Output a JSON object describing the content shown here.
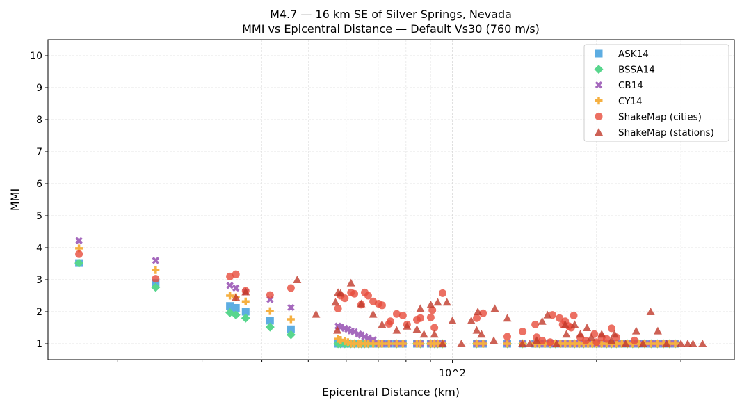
{
  "chart_data": {
    "type": "scatter",
    "title": "M4.7 — 16 km SE of Silver Springs, Nevada",
    "subtitle": "MMI vs Epicentral Distance — Default Vs30 (760 m/s)",
    "xlabel": "Epicentral Distance (km)",
    "ylabel": "MMI",
    "xscale": "log",
    "xlim": [
      14.3,
      388
    ],
    "ylim": [
      0.5,
      10.5
    ],
    "xticks": [
      {
        "value": 100,
        "label": "10^2"
      }
    ],
    "yticks": [
      1,
      2,
      3,
      4,
      5,
      6,
      7,
      8,
      9,
      10
    ],
    "grid": true,
    "legend_position": "top-right",
    "series": [
      {
        "name": "ASK14",
        "marker": "square",
        "color": "#5DADE2",
        "x": [
          16.6,
          24.0,
          34.3,
          35.3,
          37.0,
          41.6,
          46.0,
          57.7,
          58.4,
          59.6,
          60.5,
          61.4,
          62.4,
          63.7,
          64.5,
          65.6,
          66.7,
          68.3,
          70.1,
          71.3,
          73.7,
          76.5,
          78.8,
          84.3,
          85.7,
          90.1,
          91.7,
          93.2,
          95.4,
          112.4,
          115.9,
          130.2,
          140.2,
          148.9,
          152,
          156,
          160,
          164,
          168,
          172,
          176,
          180,
          184,
          188,
          192,
          196,
          200,
          205,
          210,
          215,
          220,
          226,
          232,
          238,
          245,
          252,
          260,
          268,
          276,
          284,
          292
        ],
        "y": [
          3.52,
          2.9,
          2.18,
          2.12,
          2.0,
          1.72,
          1.45,
          1,
          1,
          1,
          1,
          1,
          1,
          1,
          1,
          1,
          1,
          1,
          1,
          1,
          1,
          1,
          1,
          1,
          1,
          1,
          1,
          1,
          1,
          1,
          1,
          1,
          1,
          1,
          1,
          1,
          1,
          1,
          1,
          1,
          1,
          1,
          1,
          1,
          1,
          1,
          1,
          1,
          1,
          1,
          1,
          1,
          1,
          1,
          1,
          1,
          1,
          1,
          1,
          1,
          1
        ]
      },
      {
        "name": "BSSA14",
        "marker": "diamond",
        "color": "#58D68D",
        "x": [
          16.6,
          24.0,
          34.3,
          35.3,
          37.0,
          41.6,
          46.0,
          57.7,
          58.4,
          59.6,
          60.5,
          61.4,
          62.4,
          63.7,
          64.5,
          65.6,
          66.7,
          68.3,
          70.1,
          71.3,
          73.7,
          76.5,
          78.8,
          84.3,
          85.7,
          90.1,
          91.7,
          93.2,
          95.4,
          112.4,
          115.9,
          130.2,
          140.2,
          148.9,
          152,
          156,
          160,
          164,
          168,
          172,
          176,
          180,
          184,
          188,
          192,
          196,
          200,
          205,
          210,
          215,
          220,
          226,
          232,
          238,
          245,
          252,
          260,
          268,
          276,
          284,
          292
        ],
        "y": [
          3.52,
          2.76,
          1.97,
          1.9,
          1.8,
          1.52,
          1.28,
          1,
          1,
          1,
          1,
          1,
          1,
          1,
          1,
          1,
          1,
          1,
          1,
          1,
          1,
          1,
          1,
          1,
          1,
          1,
          1,
          1,
          1,
          1,
          1,
          1,
          1,
          1,
          1,
          1,
          1,
          1,
          1,
          1,
          1,
          1,
          1,
          1,
          1,
          1,
          1,
          1,
          1,
          1,
          1,
          1,
          1,
          1,
          1,
          1,
          1,
          1,
          1,
          1,
          1
        ]
      },
      {
        "name": "CB14",
        "marker": "x",
        "color": "#A569BD",
        "x": [
          16.6,
          24.0,
          34.3,
          35.3,
          37.0,
          41.6,
          46.0,
          57.7,
          58.4,
          59.6,
          60.5,
          61.4,
          62.4,
          63.7,
          64.5,
          65.6,
          66.7,
          68.3,
          70.1,
          71.3,
          73.7,
          76.5,
          78.8,
          84.3,
          85.7,
          90.1,
          91.7,
          93.2,
          95.4,
          112.4,
          115.9,
          130.2,
          140.2,
          148.9,
          152,
          156,
          160,
          164,
          168,
          172,
          176,
          180,
          184,
          188,
          192,
          196,
          200,
          205,
          210,
          215,
          220,
          226,
          232,
          238,
          245,
          252,
          260,
          268,
          276,
          284,
          292
        ],
        "y": [
          4.22,
          3.6,
          2.82,
          2.74,
          2.62,
          2.38,
          2.13,
          1.55,
          1.52,
          1.48,
          1.45,
          1.4,
          1.37,
          1.3,
          1.27,
          1.22,
          1.18,
          1.12,
          1,
          1,
          1,
          1,
          1,
          1,
          1,
          1,
          1,
          1,
          1,
          1,
          1,
          1,
          1,
          1,
          1,
          1,
          1,
          1,
          1,
          1,
          1,
          1,
          1,
          1,
          1,
          1,
          1,
          1,
          1,
          1,
          1,
          1,
          1,
          1,
          1,
          1,
          1,
          1,
          1,
          1,
          1
        ]
      },
      {
        "name": "CY14",
        "marker": "plus",
        "color": "#F5B041",
        "x": [
          16.6,
          24.0,
          34.3,
          35.3,
          37.0,
          41.6,
          46.0,
          57.7,
          58.4,
          59.6,
          60.5,
          61.4,
          62.4,
          63.7,
          64.5,
          65.6,
          66.7,
          68.3,
          70.1,
          71.3,
          73.7,
          76.5,
          78.8,
          84.3,
          85.7,
          90.1,
          91.7,
          93.2,
          95.4,
          112.4,
          115.9,
          130.2,
          140.2,
          148.9,
          152,
          156,
          160,
          164,
          168,
          172,
          176,
          180,
          184,
          188,
          192,
          196,
          200,
          205,
          210,
          215,
          220,
          226,
          232,
          238,
          245,
          252,
          260,
          268,
          276,
          284,
          292
        ],
        "y": [
          3.98,
          3.3,
          2.5,
          2.45,
          2.32,
          2.02,
          1.76,
          1.15,
          1.12,
          1.08,
          1.05,
          1,
          1,
          1,
          1,
          1,
          1,
          1,
          1,
          1,
          1,
          1,
          1,
          1,
          1,
          1,
          1,
          1,
          1,
          1,
          1,
          1,
          1,
          1,
          1,
          1,
          1,
          1,
          1,
          1,
          1,
          1,
          1,
          1,
          1,
          1,
          1,
          1,
          1,
          1,
          1,
          1,
          1,
          1,
          1,
          1,
          1,
          1,
          1,
          1,
          1
        ]
      },
      {
        "name": "ShakeMap (cities)",
        "marker": "circle",
        "color": "#E74C3C",
        "x": [
          16.6,
          24.0,
          34.3,
          35.3,
          37.0,
          41.6,
          46.0,
          57.7,
          58.4,
          59.6,
          61.4,
          62.4,
          64.5,
          65.6,
          66.7,
          68.3,
          70.1,
          71.3,
          73.7,
          74.2,
          76.5,
          78.8,
          80.4,
          84.3,
          85.7,
          90.1,
          90.8,
          91.7,
          95.4,
          112.4,
          115.9,
          130.2,
          140.2,
          148.9,
          150,
          154,
          160,
          161.8,
          167.4,
          170,
          172,
          175,
          177,
          179.2,
          185,
          190,
          198,
          200,
          205,
          210,
          215,
          220,
          240
        ],
        "y": [
          3.8,
          3.03,
          3.1,
          3.17,
          2.65,
          2.52,
          2.74,
          2.1,
          2.5,
          2.42,
          2.6,
          2.56,
          2.22,
          2.6,
          2.5,
          2.32,
          2.25,
          2.2,
          1.62,
          1.7,
          1.93,
          1.88,
          1.6,
          1.75,
          1.8,
          1.82,
          2.05,
          1.5,
          2.58,
          1.8,
          1.95,
          1.22,
          1.38,
          1.6,
          1.2,
          1.1,
          1.05,
          1.9,
          1.8,
          1.6,
          1.7,
          1.55,
          1.5,
          1.88,
          1.2,
          1.1,
          1.3,
          1.05,
          1.2,
          1.15,
          1.48,
          1.2,
          1.1
        ]
      },
      {
        "name": "ShakeMap (stations)",
        "marker": "triangle",
        "color": "#C0392B",
        "x": [
          35.3,
          37.0,
          47.4,
          51.9,
          57.0,
          57.5,
          57.7,
          58.4,
          61.4,
          64.5,
          68.3,
          71.3,
          76.5,
          80.4,
          84.3,
          85.7,
          87.2,
          90.1,
          91.7,
          93.2,
          95.4,
          97.4,
          100,
          104.4,
          109.5,
          112.4,
          113,
          115,
          122.6,
          122,
          130.2,
          140,
          145,
          150,
          154,
          158,
          165,
          172,
          173,
          180,
          185,
          191,
          195,
          205,
          215,
          218,
          230,
          242,
          250,
          259.4,
          268.5,
          280,
          300,
          310,
          318,
          333
        ],
        "y": [
          2.45,
          2.62,
          3.0,
          1.92,
          2.3,
          1.42,
          2.6,
          2.58,
          2.9,
          2.25,
          1.92,
          1.6,
          1.42,
          1.55,
          1.45,
          2.1,
          1.3,
          2.22,
          1.3,
          2.3,
          1.0,
          2.3,
          1.72,
          1.0,
          1.72,
          1.42,
          2.0,
          1.3,
          2.1,
          1.1,
          1.8,
          1.0,
          1.0,
          1.1,
          1.7,
          1.9,
          1.0,
          1.6,
          1.3,
          1.6,
          1.3,
          1.5,
          1.2,
          1.3,
          1.1,
          1.3,
          1.0,
          1.4,
          1.0,
          2.0,
          1.4,
          1.0,
          1.0,
          1.0,
          1.0,
          1.0
        ]
      }
    ]
  }
}
